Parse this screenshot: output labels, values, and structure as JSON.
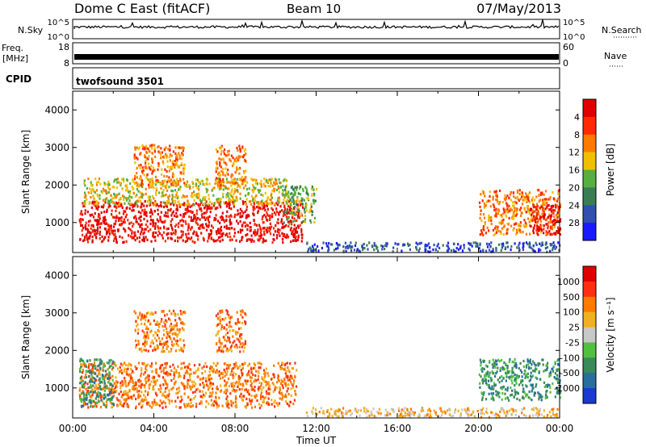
{
  "header": {
    "radar": "Dome C East (fitACF)",
    "beam": "Beam 10",
    "date": "07/May/2013"
  },
  "strip_panels": {
    "nsky": {
      "label": "N.Sky",
      "top_tick": "10^5",
      "bottom_tick": "10^0",
      "right_top_tick": "10^5",
      "right_bottom_tick": "10^0",
      "right_label": "N.Search"
    },
    "freq": {
      "label_line1": "Freq.",
      "label_line2": "[MHz]",
      "top_tick": "18",
      "bottom_tick": "8",
      "right_top_tick": "60",
      "right_bottom_tick": "0",
      "right_label": "Nave"
    },
    "cpid": {
      "label": "CPID",
      "program": "twofsound 3501"
    }
  },
  "chart_data": [
    {
      "type": "heatmap",
      "title": "",
      "xlabel": "",
      "ylabel": "Slant Range [km]",
      "ylim": [
        200,
        4500
      ],
      "yticks": [
        "1000",
        "2000",
        "3000",
        "4000"
      ],
      "colorbar": {
        "label": "Power [dB]",
        "tick_labels": [
          "4",
          "8",
          "12",
          "16",
          "20",
          "24",
          "28"
        ],
        "colors": [
          "#1a1aff",
          "#2f50b0",
          "#3a7d55",
          "#55b040",
          "#f0c000",
          "#ff7a00",
          "#ff2a00",
          "#e00000"
        ]
      },
      "regions": [
        {
          "t0": 0.3,
          "t1": 11.3,
          "r0": 500,
          "r1": 1600,
          "level": 7
        },
        {
          "t0": 0.5,
          "t1": 10.5,
          "r0": 1500,
          "r1": 2200,
          "level": 4
        },
        {
          "t0": 3.0,
          "t1": 5.5,
          "r0": 2000,
          "r1": 3100,
          "level": 5
        },
        {
          "t0": 7.0,
          "t1": 8.5,
          "r0": 2000,
          "r1": 3100,
          "level": 5
        },
        {
          "t0": 10.3,
          "t1": 12.0,
          "r0": 1000,
          "r1": 2000,
          "level": 3
        },
        {
          "t0": 20.0,
          "t1": 24.0,
          "r0": 700,
          "r1": 1900,
          "level": 5
        },
        {
          "t0": 22.5,
          "t1": 24.0,
          "r0": 700,
          "r1": 1500,
          "level": 7
        },
        {
          "t0": 11.5,
          "t1": 24.0,
          "r0": 250,
          "r1": 500,
          "level": 1
        }
      ]
    },
    {
      "type": "heatmap",
      "title": "",
      "xlabel": "Time UT",
      "ylabel": "Slant Range [km]",
      "ylim": [
        200,
        4500
      ],
      "yticks": [
        "1000",
        "2000",
        "3000",
        "4000"
      ],
      "xticks": [
        "00:00",
        "04:00",
        "08:00",
        "12:00",
        "16:00",
        "20:00",
        "00:00"
      ],
      "colorbar": {
        "label": "Velocity [m s⁻¹]",
        "tick_labels": [
          "1000",
          "500",
          "100",
          "25",
          "-25",
          "-100",
          "-500",
          "-1000"
        ],
        "colors": [
          "#1a3ad0",
          "#2a6e9e",
          "#3a8a5a",
          "#50c040",
          "#c8c8c8",
          "#f0b020",
          "#ff7a00",
          "#ff3010",
          "#e00000"
        ]
      },
      "regions": [
        {
          "t0": 0.3,
          "t1": 11.0,
          "r0": 500,
          "r1": 1700,
          "level": 6
        },
        {
          "t0": 0.3,
          "t1": 2.0,
          "r0": 500,
          "r1": 1800,
          "level": 2
        },
        {
          "t0": 3.0,
          "t1": 5.5,
          "r0": 2000,
          "r1": 3100,
          "level": 6
        },
        {
          "t0": 7.0,
          "t1": 8.5,
          "r0": 2000,
          "r1": 3100,
          "level": 6
        },
        {
          "t0": 20.0,
          "t1": 24.0,
          "r0": 700,
          "r1": 1800,
          "level": 2
        },
        {
          "t0": 11.5,
          "t1": 24.0,
          "r0": 250,
          "r1": 500,
          "level": 5
        }
      ]
    }
  ]
}
